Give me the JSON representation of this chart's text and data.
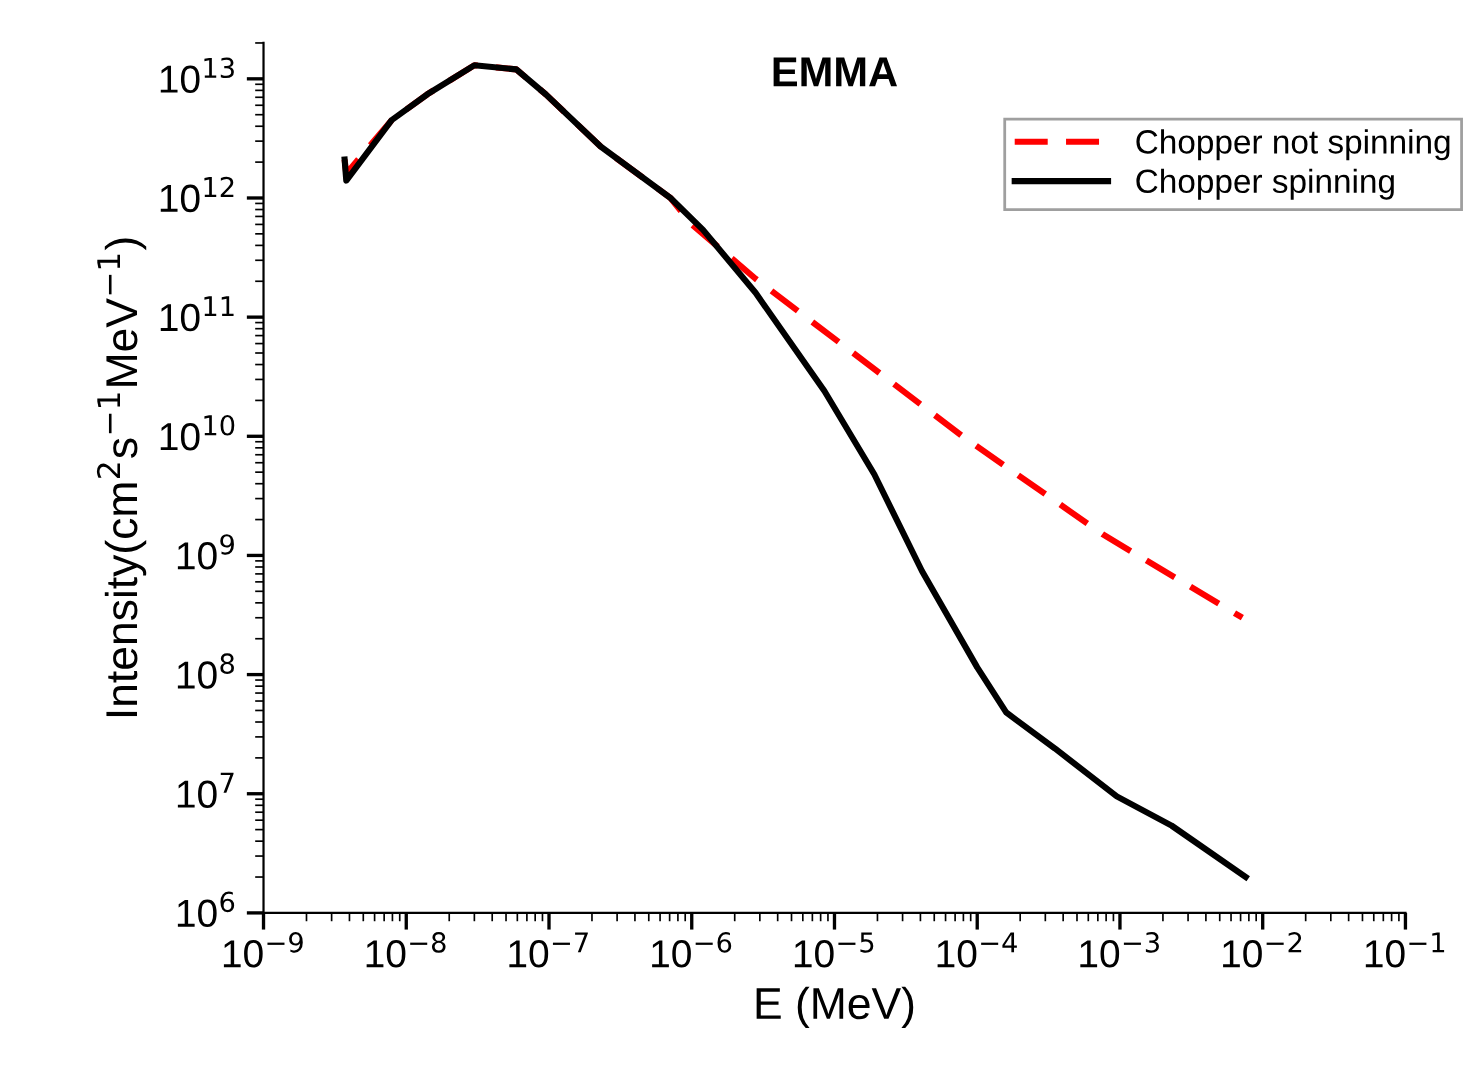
{
  "chart_data": {
    "type": "line",
    "title": "EMMA",
    "xlabel": "E (MeV)",
    "ylabel": "Intensity(cm$^{2}$s$^{−1}$MeV$^{−1}$)",
    "log": "xy",
    "xlim": [
      1e-09,
      0.1
    ],
    "ylim": [
      1000000.0,
      20000000000000.0
    ],
    "xticks": [
      {
        "value": 1e-09,
        "label": "10$^{−9}$"
      },
      {
        "value": 1e-08,
        "label": "10$^{−8}$"
      },
      {
        "value": 1e-07,
        "label": "10$^{−7}$"
      },
      {
        "value": 1e-06,
        "label": "10$^{−6}$"
      },
      {
        "value": 1e-05,
        "label": "10$^{−5}$"
      },
      {
        "value": 0.0001,
        "label": "10$^{−4}$"
      },
      {
        "value": 0.001,
        "label": "10$^{−3}$"
      },
      {
        "value": 0.01,
        "label": "10$^{−2}$"
      },
      {
        "value": 0.1,
        "label": "10$^{−1}$"
      }
    ],
    "yticks": [
      {
        "value": 1000000.0,
        "label": "10$^{6}$"
      },
      {
        "value": 10000000.0,
        "label": "10$^{7}$"
      },
      {
        "value": 100000000.0,
        "label": "10$^{8}$"
      },
      {
        "value": 1000000000.0,
        "label": "10$^{9}$"
      },
      {
        "value": 10000000000.0,
        "label": "10$^{10}$"
      },
      {
        "value": 100000000000.0,
        "label": "10$^{11}$"
      },
      {
        "value": 1000000000000.0,
        "label": "10$^{12}$"
      },
      {
        "value": 10000000000000.0,
        "label": "10$^{13}$"
      }
    ],
    "legend": "top right",
    "grid": false,
    "series": [
      {
        "name": "Chopper not spinning",
        "color": "#ff0000",
        "line_style": "dashed",
        "x": [
          3.7e-09,
          3.8e-09,
          7.9e-09,
          1.4e-08,
          3e-08,
          5.9e-08,
          9.5e-08,
          2.3e-07,
          7.1e-07,
          1e-06,
          2.8e-06,
          7.9e-05,
          0.00076,
          0.0072
        ],
        "values": [
          2100000000000.0,
          1600000000000.0,
          4500000000000.0,
          7400000000000.0,
          13000000000000.0,
          12000000000000.0,
          7400000000000.0,
          2700000000000.0,
          1000000000000.0,
          600000000000.0,
          210000000000.0,
          10000000000.0,
          1500000000.0,
          300000000.0
        ]
      },
      {
        "name": "Chopper spinning",
        "color": "#000000",
        "line_style": "solid",
        "x": [
          3.7e-09,
          3.8e-09,
          7.9e-09,
          1.4e-08,
          3e-08,
          5.9e-08,
          9.5e-08,
          2.3e-07,
          7.1e-07,
          1.2e-06,
          2.8e-06,
          8.5e-06,
          1.9e-05,
          4.1e-05,
          0.0001,
          0.00016,
          0.00035,
          0.00095,
          0.0023,
          0.0076
        ],
        "values": [
          2100000000000.0,
          1400000000000.0,
          4500000000000.0,
          7400000000000.0,
          13000000000000.0,
          12000000000000.0,
          7400000000000.0,
          2700000000000.0,
          1000000000000.0,
          540000000000.0,
          160000000000.0,
          24000000000.0,
          4800000000.0,
          740000000.0,
          115000000.0,
          48000000.0,
          24000000.0,
          9500000.0,
          5400000.0,
          2000000.0
        ]
      }
    ]
  }
}
